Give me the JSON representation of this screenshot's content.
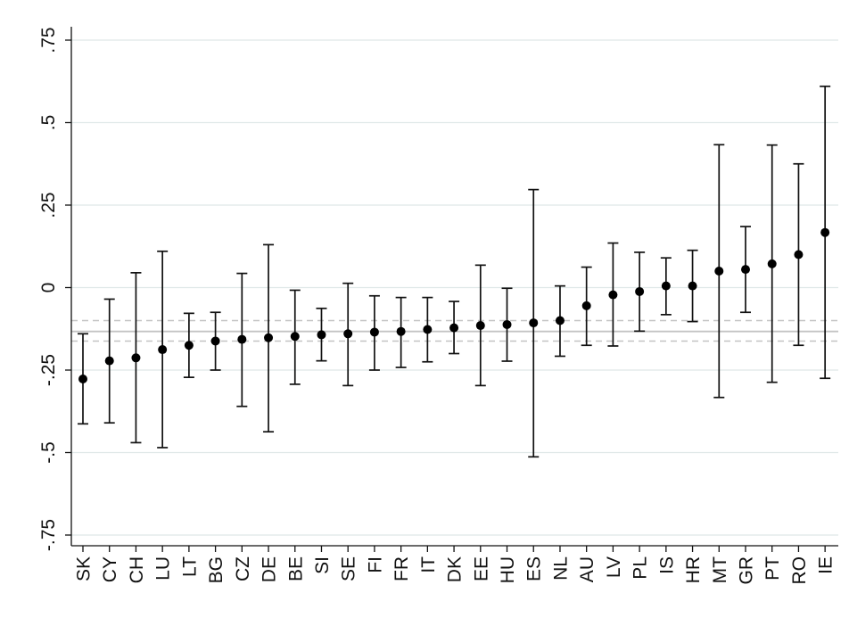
{
  "chart_data": {
    "type": "scatter",
    "title": "",
    "xlabel": "",
    "ylabel": "",
    "categories": [
      "SK",
      "CY",
      "CH",
      "LU",
      "LT",
      "BG",
      "CZ",
      "DE",
      "BE",
      "SI",
      "SE",
      "FI",
      "FR",
      "IT",
      "DK",
      "EE",
      "HU",
      "ES",
      "NL",
      "AU",
      "LV",
      "PL",
      "IS",
      "HR",
      "MT",
      "GR",
      "PT",
      "RO",
      "IE"
    ],
    "estimates": [
      -0.277,
      -0.222,
      -0.213,
      -0.188,
      -0.175,
      -0.162,
      -0.157,
      -0.152,
      -0.148,
      -0.143,
      -0.14,
      -0.135,
      -0.133,
      -0.127,
      -0.122,
      -0.115,
      -0.112,
      -0.107,
      -0.1,
      -0.055,
      -0.022,
      -0.012,
      0.005,
      0.005,
      0.05,
      0.055,
      0.072,
      0.1,
      0.167
    ],
    "ci_lower": [
      -0.413,
      -0.41,
      -0.47,
      -0.485,
      -0.272,
      -0.25,
      -0.36,
      -0.437,
      -0.293,
      -0.222,
      -0.297,
      -0.25,
      -0.242,
      -0.225,
      -0.2,
      -0.297,
      -0.223,
      -0.513,
      -0.208,
      -0.175,
      -0.177,
      -0.132,
      -0.082,
      -0.103,
      -0.333,
      -0.075,
      -0.287,
      -0.175,
      -0.275
    ],
    "ci_upper": [
      -0.14,
      -0.035,
      0.045,
      0.11,
      -0.078,
      -0.075,
      0.043,
      0.13,
      -0.008,
      -0.063,
      0.013,
      -0.025,
      -0.03,
      -0.03,
      -0.042,
      0.068,
      -0.002,
      0.297,
      0.005,
      0.062,
      0.135,
      0.107,
      0.09,
      0.113,
      0.433,
      0.185,
      0.432,
      0.375,
      0.61
    ],
    "reference_line": -0.133,
    "reference_band": [
      -0.162,
      -0.1
    ],
    "yticks": [
      0.75,
      0.5,
      0.25,
      0,
      -0.25,
      -0.5,
      -0.75
    ],
    "ytick_labels": [
      ".75",
      ".5",
      ".25",
      "0",
      "-.25",
      "-.5",
      "-.75"
    ],
    "ylim": [
      -0.8,
      0.78
    ],
    "grid": true,
    "colors": {
      "point": "#000000",
      "whisker": "#111111",
      "grid": "#dfe8e8",
      "reference_line": "#c4c4c4",
      "reference_band": "#c4c4c4"
    }
  }
}
